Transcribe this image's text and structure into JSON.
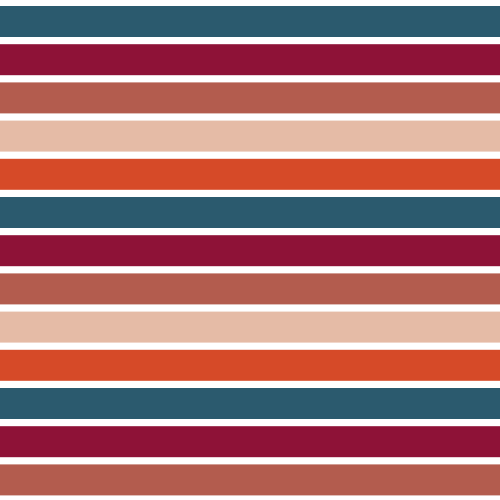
{
  "pattern": {
    "colors": [
      "#2b5a6e",
      "#8e1237",
      "#b35c4e",
      "#e5bba6",
      "#d64a28"
    ]
  }
}
